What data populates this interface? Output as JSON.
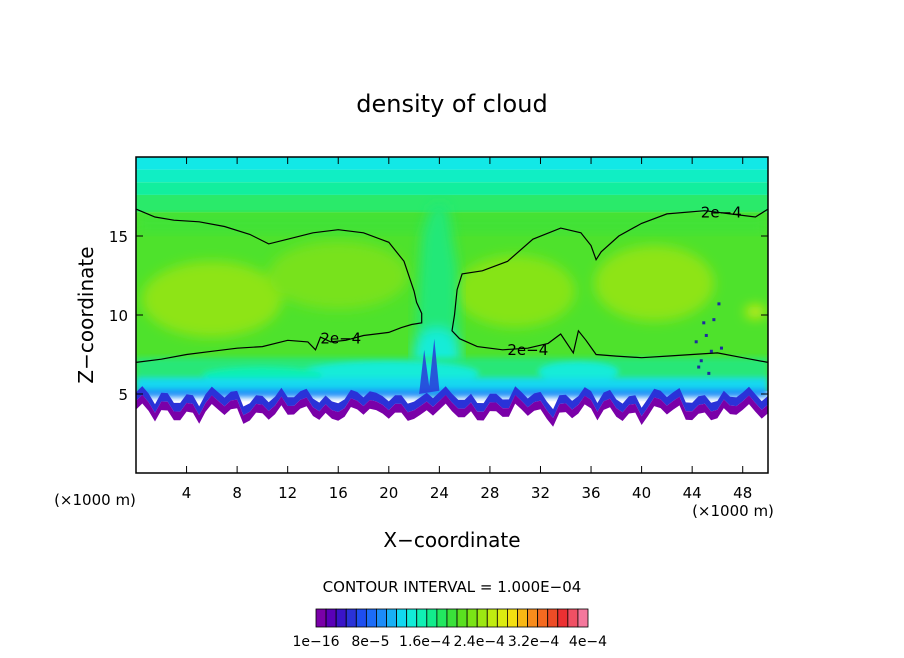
{
  "chart_data": {
    "type": "heatmap",
    "title": "density of cloud",
    "xlabel": "X−coordinate",
    "ylabel": "Z−coordinate",
    "x_unit_left": "(×1000 m)",
    "x_unit_right": "(×1000 m)",
    "xlim": [
      0,
      50
    ],
    "ylim": [
      0,
      20
    ],
    "x_ticks": [
      4,
      8,
      12,
      16,
      20,
      24,
      28,
      32,
      36,
      40,
      44,
      48
    ],
    "y_ticks": [
      5,
      10,
      15
    ],
    "contour_interval_text": "CONTOUR INTERVAL =  1.000E−04",
    "contour_labels": [
      {
        "text": "2e−4",
        "x": 46.3,
        "z": 16.5
      },
      {
        "text": "2e−4",
        "x": 16.2,
        "z": 8.5
      },
      {
        "text": "2e−4",
        "x": 31.0,
        "z": 7.8
      }
    ],
    "colorbar": {
      "colors": [
        "#7a00a8",
        "#5a00b8",
        "#3a14c8",
        "#2a32d8",
        "#1e4ef0",
        "#1c6cf8",
        "#1c8cf8",
        "#18b0f4",
        "#12d8f0",
        "#12ecd8",
        "#10f0b4",
        "#12ec8c",
        "#22e860",
        "#3ae23a",
        "#5ae020",
        "#7ae416",
        "#9ce812",
        "#c0ec10",
        "#dcec10",
        "#f4e010",
        "#f8b814",
        "#f88c1c",
        "#f46a20",
        "#ee4c26",
        "#ec3032",
        "#f05064",
        "#f4789c"
      ],
      "tick_labels": [
        "1e−16",
        "8e−5",
        "1.6e−4",
        "2.4e−4",
        "3.2e−4",
        "4e−4"
      ]
    },
    "field": {
      "cloud_base_z": 4.5,
      "cloud_top_z": 20,
      "core_value": "2e-4 to 3e-4",
      "gap_center_x": 24
    }
  }
}
